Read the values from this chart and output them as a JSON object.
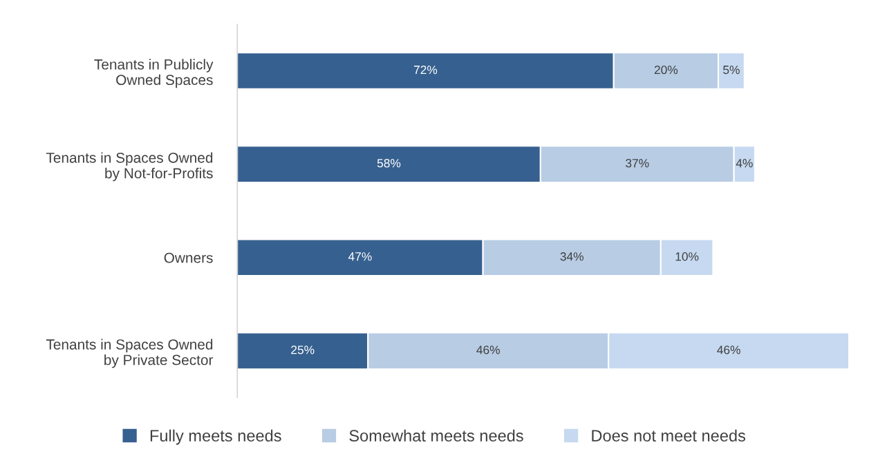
{
  "chart_data": {
    "type": "bar",
    "orientation": "horizontal",
    "stacked": true,
    "categories": [
      "Tenants in Publicly\nOwned Spaces",
      "Tenants in Spaces Owned\nby Not-for-Profits",
      "Owners",
      "Tenants in Spaces Owned\nby Private Sector"
    ],
    "series": [
      {
        "name": "Fully meets needs",
        "color": "#36608f",
        "values": [
          72,
          58,
          47,
          25
        ],
        "value_labels": [
          "72%",
          "58%",
          "47%",
          "25%"
        ]
      },
      {
        "name": "Somewhat meets needs",
        "color": "#b8cce4",
        "values": [
          20,
          37,
          34,
          46
        ],
        "value_labels": [
          "20%",
          "37%",
          "34%",
          "46%"
        ]
      },
      {
        "name": "Does not meet needs",
        "color": "#c6d9f0",
        "values": [
          5,
          4,
          10,
          46
        ],
        "value_labels": [
          "5%",
          "4%",
          "10%",
          "46%"
        ]
      }
    ],
    "legend": "bottom",
    "grid": false
  }
}
